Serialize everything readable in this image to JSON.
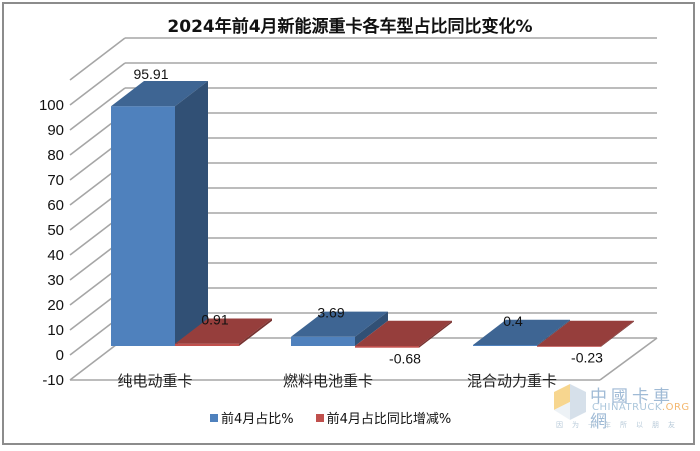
{
  "chart_data": {
    "type": "bar",
    "title": "2024年前4月新能源重卡各车型占比同比变化%",
    "categories": [
      "纯电动重卡",
      "燃料电池重卡",
      "混合动力重卡"
    ],
    "series": [
      {
        "name": "前4月占比%",
        "color": "#4f81bd",
        "values": [
          95.91,
          3.69,
          0.4
        ]
      },
      {
        "name": "前4月占比同比增减%",
        "color": "#c0504d",
        "values": [
          0.91,
          -0.68,
          -0.23
        ]
      }
    ],
    "xlabel": "",
    "ylabel": "",
    "ylim": [
      -10,
      100
    ],
    "yticks": [
      100,
      90,
      80,
      70,
      60,
      50,
      40,
      30,
      20,
      10,
      0,
      -10
    ],
    "grid": true,
    "legend_position": "bottom",
    "style": "3d-clustered-column"
  },
  "labels": {
    "data_labels": [
      [
        "95.91",
        "0.91"
      ],
      [
        "3.69",
        "-0.68"
      ],
      [
        "0.4",
        "-0.23"
      ]
    ]
  },
  "legend": [
    {
      "label": "前4月占比%",
      "color": "#4f81bd"
    },
    {
      "label": "前4月占比同比增减%",
      "color": "#c0504d"
    }
  ],
  "watermark": {
    "cn": "中國卡車網",
    "en_main": "CHINATRUCK",
    "en_suffix": ".ORG",
    "slogan": "因为卡车所以朋友"
  }
}
